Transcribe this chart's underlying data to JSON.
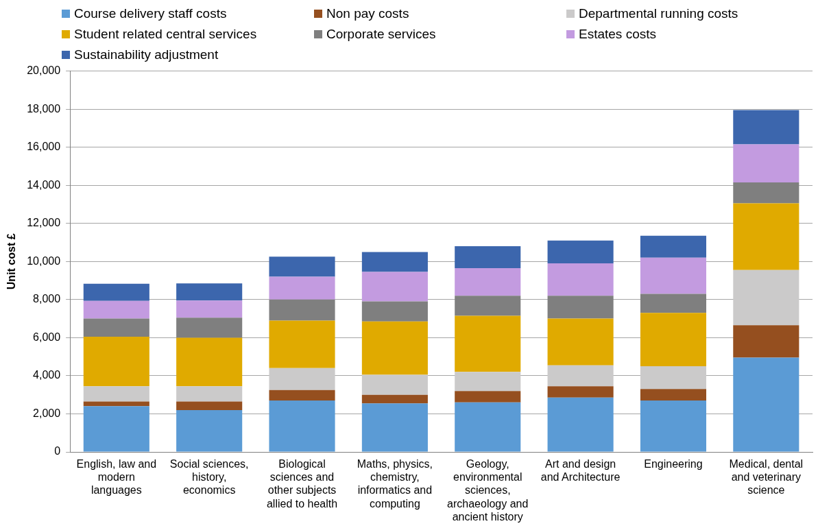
{
  "chart_data": {
    "type": "bar",
    "stacked": true,
    "ylabel": "Unit cost £",
    "categories": [
      "English, law and modern languages",
      "Social sciences, history, economics",
      "Biological sciences and other subjects allied to health",
      "Maths, physics, chemistry, informatics and computing",
      "Geology, environmental sciences, archaeology and ancient history",
      "Art and design and Architecture",
      "Engineering",
      "Medical, dental and veterinary science"
    ],
    "series": [
      {
        "name": "Course delivery staff costs",
        "color": "#5b9bd5",
        "values": [
          2400,
          2200,
          2700,
          2550,
          2600,
          2850,
          2700,
          4950
        ]
      },
      {
        "name": "Non pay costs",
        "color": "#954f1f",
        "values": [
          250,
          450,
          550,
          450,
          600,
          600,
          600,
          1700
        ]
      },
      {
        "name": "Departmental running costs",
        "color": "#cbcaca",
        "values": [
          800,
          800,
          1150,
          1050,
          1000,
          1100,
          1200,
          2900
        ]
      },
      {
        "name": "Student related central services",
        "color": "#e0aa00",
        "values": [
          2600,
          2550,
          2500,
          2800,
          2950,
          2450,
          2800,
          3500
        ]
      },
      {
        "name": "Corporate services",
        "color": "#7f7f7f",
        "values": [
          950,
          1050,
          1100,
          1050,
          1050,
          1200,
          1000,
          1100
        ]
      },
      {
        "name": "Estates costs",
        "color": "#c39be0",
        "values": [
          930,
          900,
          1200,
          1550,
          1450,
          1700,
          1900,
          2000
        ]
      },
      {
        "name": "Sustainability adjustment",
        "color": "#3c66ad",
        "values": [
          900,
          900,
          1050,
          1050,
          1150,
          1200,
          1150,
          1800
        ]
      }
    ],
    "ylim": [
      0,
      20000
    ],
    "yticks": [
      0,
      {
        "value": 2000,
        "label": "2,000"
      },
      {
        "value": 4000,
        "label": "4,000"
      },
      {
        "value": 6000,
        "label": "6,000"
      },
      {
        "value": 8000,
        "label": "8,000"
      },
      {
        "value": 10000,
        "label": "10,000"
      },
      {
        "value": 12000,
        "label": "12,000"
      },
      {
        "value": 14000,
        "label": "14,000"
      },
      {
        "value": 16000,
        "label": "16,000"
      },
      {
        "value": 18000,
        "label": "18,000"
      },
      {
        "value": 20000,
        "label": "20,000"
      }
    ],
    "grid": "y",
    "legend": "top"
  }
}
